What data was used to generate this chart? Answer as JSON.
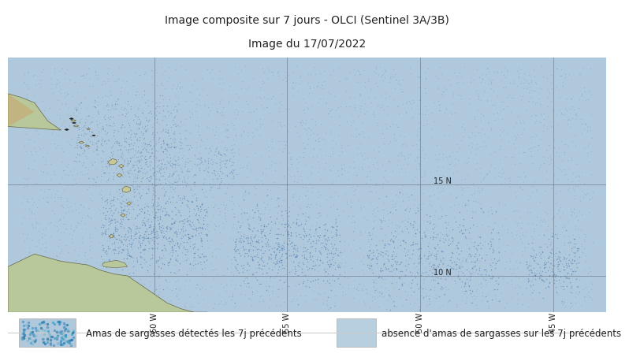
{
  "title_line1": "Image composite sur 7 jours - OLCI (Sentinel 3A/3B)",
  "title_line2": "Image du 17/07/2022",
  "title_bg_color": "#ffffff",
  "map_bg_color": "#b0c8dc",
  "legend_bg_color": "#ffffff",
  "legend_box1_label": "Amas de sargasses détectés les 7j précédents",
  "legend_box2_color": "#b8cfe0",
  "legend_box2_label": "absence d'amas de sargasses sur les 7j précédents",
  "grid_color": "#607080",
  "lon_ticks": [
    -60,
    -55,
    -50,
    -45
  ],
  "lon_labels": [
    "60°W",
    "55°W",
    "50°W",
    "45°W"
  ],
  "lat_ticks": [
    10,
    15
  ],
  "lat_labels": [
    "10 N",
    "15 N"
  ],
  "xlim": [
    -65.5,
    -43.0
  ],
  "ylim": [
    8.0,
    22.0
  ],
  "border_color": "#aaaaaa",
  "title_fontsize": 10,
  "legend_fontsize": 8.5,
  "tick_label_fontsize": 7
}
